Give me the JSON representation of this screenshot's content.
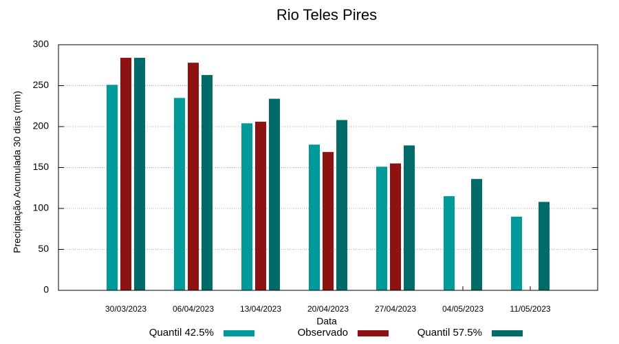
{
  "chart_data": {
    "type": "bar",
    "title": "Rio Teles Pires",
    "x_label": "Data",
    "y_label": "Precipitação Acumulada 30 dias (mm)",
    "categories": [
      "30/03/2023",
      "06/04/2023",
      "13/04/2023",
      "20/04/2023",
      "27/04/2023",
      "04/05/2023",
      "11/05/2023"
    ],
    "series": [
      {
        "name": "Quantil 42.5%",
        "color": "#009a9a",
        "values": [
          251,
          235,
          204,
          178,
          151,
          115,
          90
        ]
      },
      {
        "name": "Observado",
        "color": "#8f1212",
        "values": [
          284,
          278,
          206,
          169,
          155,
          null,
          null
        ]
      },
      {
        "name": "Quantil 57.5%",
        "color": "#006b68",
        "values": [
          284,
          263,
          234,
          208,
          177,
          136,
          108
        ]
      }
    ],
    "ylim": [
      0,
      300
    ],
    "yticks": [
      0,
      50,
      100,
      150,
      200,
      250,
      300
    ],
    "grid": true,
    "legend": "bottom"
  }
}
